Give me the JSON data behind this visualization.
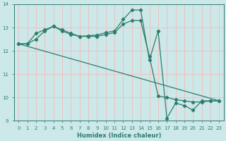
{
  "xlabel": "Humidex (Indice chaleur)",
  "bg_color": "#cce8e8",
  "grid_color": "#f0c0c0",
  "line_color": "#2e7d6e",
  "xlim": [
    -0.5,
    23.5
  ],
  "ylim": [
    9,
    14
  ],
  "yticks": [
    9,
    10,
    11,
    12,
    13,
    14
  ],
  "xticks": [
    0,
    1,
    2,
    3,
    4,
    5,
    6,
    7,
    8,
    9,
    10,
    11,
    12,
    13,
    14,
    15,
    16,
    17,
    18,
    19,
    20,
    21,
    22,
    23
  ],
  "line1_x": [
    0,
    1,
    2,
    3,
    4,
    5,
    6,
    7,
    8,
    9,
    10,
    11,
    12,
    13,
    14,
    15,
    16,
    17,
    18,
    19,
    20,
    21,
    22,
    23
  ],
  "line1_y": [
    12.3,
    12.3,
    12.75,
    12.9,
    13.05,
    12.9,
    12.75,
    12.62,
    12.65,
    12.68,
    12.78,
    12.85,
    13.35,
    13.75,
    13.75,
    11.6,
    12.85,
    9.1,
    9.75,
    9.65,
    9.45,
    9.85,
    9.85,
    9.85
  ],
  "line2_x": [
    0,
    23
  ],
  "line2_y": [
    12.3,
    9.85
  ],
  "line3_x": [
    0,
    1,
    2,
    3,
    4,
    5,
    6,
    7,
    8,
    9,
    10,
    11,
    12,
    13,
    14,
    15,
    16,
    17,
    18,
    19,
    20,
    21,
    22,
    23
  ],
  "line3_y": [
    12.3,
    12.3,
    12.5,
    12.85,
    13.05,
    12.85,
    12.7,
    12.62,
    12.62,
    12.62,
    12.7,
    12.78,
    13.15,
    13.3,
    13.3,
    11.75,
    10.05,
    10.0,
    9.9,
    9.85,
    9.8,
    9.8,
    9.85,
    9.85
  ]
}
